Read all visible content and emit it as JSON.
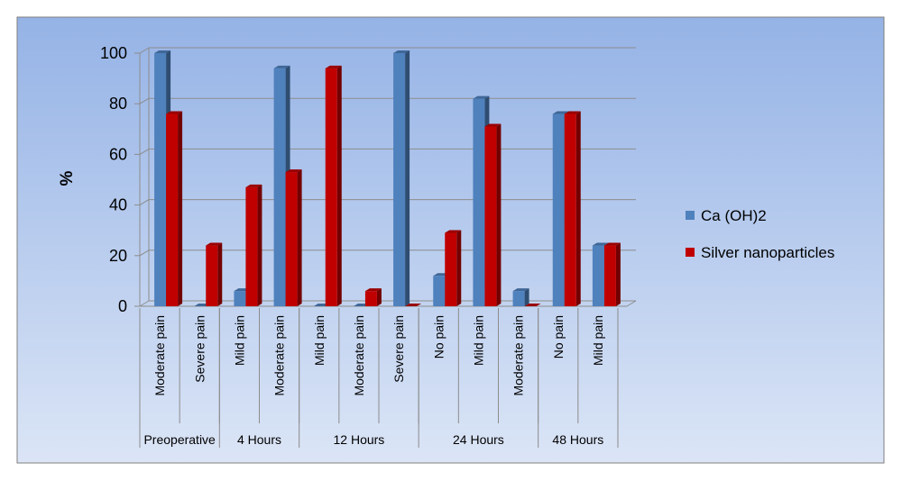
{
  "chart_data": {
    "type": "bar",
    "ylabel": "%",
    "ylim": [
      0,
      100
    ],
    "yticks": [
      0,
      20,
      40,
      60,
      80,
      100
    ],
    "grid": true,
    "legend_position": "right",
    "colors": {
      "Ca (OH)2": "#4f81bd",
      "Silver nanoparticles": "#c00000",
      "background_top": "#95b3e6",
      "background_bottom": "#dbe5f6"
    },
    "groups": [
      {
        "label": "Preoperative",
        "categories": [
          "Moderate pain",
          "Severe pain"
        ]
      },
      {
        "label": "4 Hours",
        "categories": [
          "Mild pain",
          "Moderate pain"
        ]
      },
      {
        "label": "12 Hours",
        "categories": [
          "Mild pain",
          "Moderate pain",
          "Severe pain"
        ]
      },
      {
        "label": "24 Hours",
        "categories": [
          "No pain",
          "Mild pain",
          "Moderate pain"
        ]
      },
      {
        "label": "48 Hours",
        "categories": [
          "No pain",
          "Mild pain"
        ]
      }
    ],
    "categories": [
      "Moderate pain",
      "Severe pain",
      "Mild pain",
      "Moderate pain",
      "Mild pain",
      "Moderate pain",
      "Severe pain",
      "No pain",
      "Mild pain",
      "Moderate pain",
      "No pain",
      "Mild pain"
    ],
    "series": [
      {
        "name": "Ca (OH)2",
        "values": [
          100,
          0,
          6,
          94,
          0,
          0,
          100,
          12,
          82,
          6,
          76,
          24
        ]
      },
      {
        "name": "Silver nanoparticles",
        "values": [
          76,
          24,
          47,
          53,
          94,
          6,
          0,
          29,
          71,
          0,
          76,
          24
        ]
      }
    ]
  }
}
